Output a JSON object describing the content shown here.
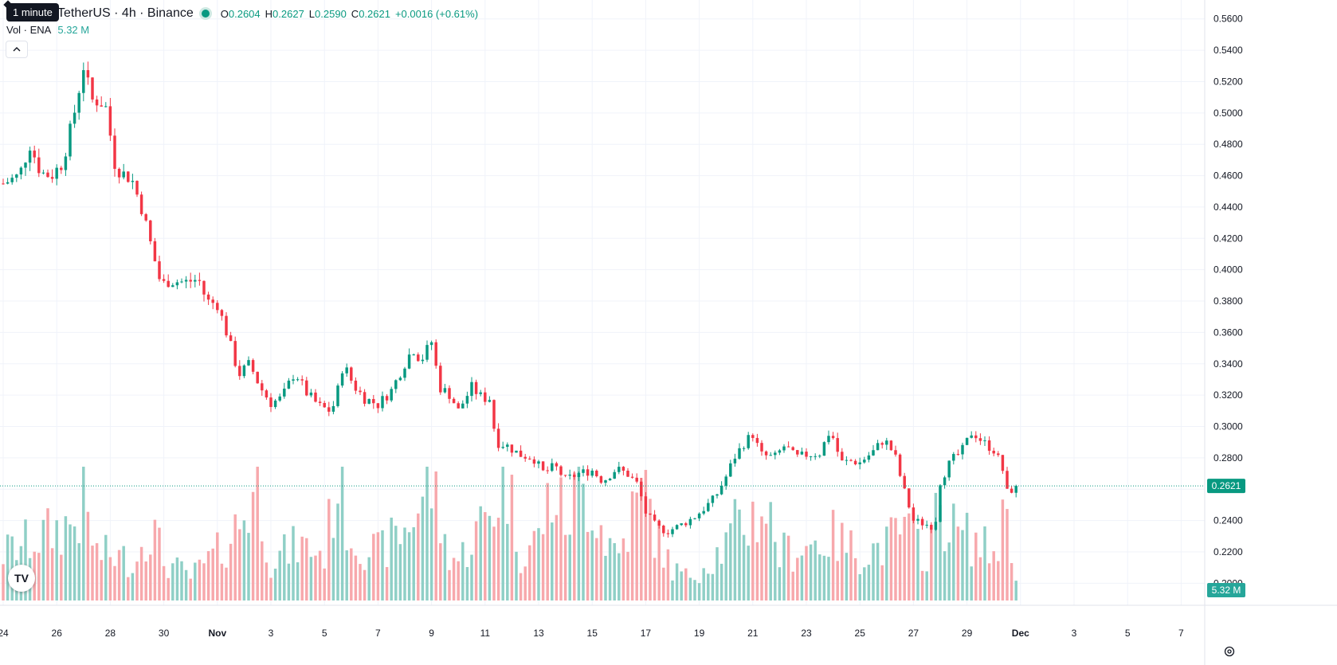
{
  "header": {
    "tooltip": "1 minute",
    "symbol": "TetherUS · 4h · Binance",
    "ohlc": {
      "o_label": "O",
      "o_value": "0.2604",
      "h_label": "H",
      "h_value": "0.2627",
      "l_label": "L",
      "l_value": "0.2590",
      "c_label": "C",
      "c_value": "0.2621",
      "change": "+0.0016 (+0.61%)"
    },
    "volume_label": "Vol · ENA",
    "volume_value": "5.32 M",
    "collapse_icon": "chevron-up-icon"
  },
  "colors": {
    "up": "#089981",
    "down": "#f23645",
    "up_vol": "#8fcfc6",
    "down_vol": "#f7a8ac",
    "grid": "#f0f3fa"
  },
  "price_badge": "0.2621",
  "volume_badge": "5.32 M",
  "logo": "TV",
  "chart_data": {
    "type": "candlestick",
    "interval": "4h",
    "y_axis": {
      "min": 0.19,
      "max": 0.568,
      "ticks": [
        "0.5600",
        "0.5400",
        "0.5200",
        "0.5000",
        "0.4800",
        "0.4600",
        "0.4400",
        "0.4200",
        "0.4000",
        "0.3800",
        "0.3600",
        "0.3400",
        "0.3200",
        "0.3000",
        "0.2800",
        "0.2600",
        "0.2400",
        "0.2200",
        "0.2000"
      ]
    },
    "x_axis": {
      "ticks": [
        "24",
        "26",
        "28",
        "30",
        "Nov",
        "3",
        "5",
        "7",
        "9",
        "11",
        "13",
        "15",
        "17",
        "19",
        "21",
        "23",
        "25",
        "27",
        "29",
        "Dec",
        "3",
        "5",
        "7"
      ],
      "tick_days": [
        0,
        2,
        4,
        6,
        8,
        10,
        12,
        14,
        16,
        18,
        20,
        22,
        24,
        26,
        28,
        30,
        32,
        34,
        36,
        38,
        40,
        42,
        44
      ]
    },
    "last_price": 0.2621,
    "anchors": [
      [
        0,
        0.455
      ],
      [
        0.6,
        0.46
      ],
      [
        1.0,
        0.48
      ],
      [
        1.4,
        0.462
      ],
      [
        1.8,
        0.46
      ],
      [
        2.2,
        0.468
      ],
      [
        2.6,
        0.495
      ],
      [
        3.0,
        0.53
      ],
      [
        3.3,
        0.508
      ],
      [
        3.6,
        0.508
      ],
      [
        3.9,
        0.502
      ],
      [
        4.1,
        0.47
      ],
      [
        4.4,
        0.462
      ],
      [
        4.8,
        0.458
      ],
      [
        5.2,
        0.438
      ],
      [
        5.6,
        0.41
      ],
      [
        5.9,
        0.39
      ],
      [
        6.2,
        0.393
      ],
      [
        6.8,
        0.392
      ],
      [
        7.3,
        0.394
      ],
      [
        7.6,
        0.38
      ],
      [
        8.0,
        0.378
      ],
      [
        8.4,
        0.357
      ],
      [
        8.8,
        0.333
      ],
      [
        9.2,
        0.34
      ],
      [
        9.6,
        0.325
      ],
      [
        10.0,
        0.315
      ],
      [
        10.4,
        0.318
      ],
      [
        10.9,
        0.335
      ],
      [
        11.3,
        0.322
      ],
      [
        11.8,
        0.313
      ],
      [
        12.2,
        0.31
      ],
      [
        12.4,
        0.315
      ],
      [
        12.7,
        0.34
      ],
      [
        13.1,
        0.326
      ],
      [
        13.5,
        0.318
      ],
      [
        14.0,
        0.314
      ],
      [
        14.5,
        0.323
      ],
      [
        14.9,
        0.337
      ],
      [
        15.3,
        0.35
      ],
      [
        15.6,
        0.342
      ],
      [
        16.0,
        0.354
      ],
      [
        16.3,
        0.325
      ],
      [
        16.7,
        0.32
      ],
      [
        17.0,
        0.31
      ],
      [
        17.5,
        0.325
      ],
      [
        17.9,
        0.318
      ],
      [
        18.2,
        0.318
      ],
      [
        18.4,
        0.29
      ],
      [
        18.8,
        0.288
      ],
      [
        19.3,
        0.282
      ],
      [
        19.8,
        0.28
      ],
      [
        20.2,
        0.27
      ],
      [
        20.6,
        0.275
      ],
      [
        21.0,
        0.266
      ],
      [
        21.5,
        0.27
      ],
      [
        22.0,
        0.272
      ],
      [
        22.4,
        0.265
      ],
      [
        22.9,
        0.273
      ],
      [
        23.3,
        0.27
      ],
      [
        23.7,
        0.263
      ],
      [
        24.0,
        0.245
      ],
      [
        24.4,
        0.236
      ],
      [
        24.8,
        0.233
      ],
      [
        25.3,
        0.237
      ],
      [
        25.8,
        0.242
      ],
      [
        26.2,
        0.248
      ],
      [
        26.6,
        0.255
      ],
      [
        27.0,
        0.268
      ],
      [
        27.3,
        0.28
      ],
      [
        27.7,
        0.29
      ],
      [
        28.0,
        0.295
      ],
      [
        28.3,
        0.282
      ],
      [
        28.8,
        0.28
      ],
      [
        29.2,
        0.288
      ],
      [
        29.6,
        0.28
      ],
      [
        30.0,
        0.282
      ],
      [
        30.5,
        0.283
      ],
      [
        30.9,
        0.298
      ],
      [
        31.3,
        0.277
      ],
      [
        31.7,
        0.278
      ],
      [
        32.0,
        0.277
      ],
      [
        32.5,
        0.284
      ],
      [
        32.9,
        0.292
      ],
      [
        33.3,
        0.282
      ],
      [
        33.6,
        0.262
      ],
      [
        34.0,
        0.24
      ],
      [
        34.4,
        0.238
      ],
      [
        34.8,
        0.236
      ],
      [
        35.0,
        0.265
      ],
      [
        35.4,
        0.278
      ],
      [
        35.8,
        0.284
      ],
      [
        36.2,
        0.297
      ],
      [
        36.6,
        0.29
      ],
      [
        37.0,
        0.285
      ],
      [
        37.3,
        0.275
      ],
      [
        37.5,
        0.258
      ],
      [
        37.9,
        0.262
      ]
    ],
    "volume_profile_m": [
      [
        0,
        6
      ],
      [
        2.7,
        10
      ],
      [
        3.0,
        12
      ],
      [
        3.5,
        6
      ],
      [
        5.0,
        5
      ],
      [
        5.2,
        9
      ],
      [
        5.6,
        9
      ],
      [
        6.0,
        5
      ],
      [
        7.0,
        3
      ],
      [
        8.0,
        6
      ],
      [
        8.5,
        8
      ],
      [
        9.0,
        11
      ],
      [
        9.5,
        15
      ],
      [
        10.0,
        5
      ],
      [
        11.0,
        7
      ],
      [
        12.0,
        6
      ],
      [
        12.5,
        16
      ],
      [
        13.0,
        8
      ],
      [
        14.0,
        6
      ],
      [
        15.0,
        9
      ],
      [
        16.0,
        15
      ],
      [
        16.5,
        7
      ],
      [
        17.0,
        5
      ],
      [
        18.3,
        12
      ],
      [
        18.8,
        16
      ],
      [
        19.3,
        6
      ],
      [
        20.0,
        8
      ],
      [
        20.5,
        14
      ],
      [
        21.0,
        10
      ],
      [
        21.5,
        14
      ],
      [
        22.0,
        13
      ],
      [
        22.5,
        8
      ],
      [
        23.0,
        6
      ],
      [
        23.5,
        11
      ],
      [
        24.0,
        14
      ],
      [
        24.4,
        8
      ],
      [
        25.0,
        4
      ],
      [
        25.5,
        3
      ],
      [
        26.0,
        4
      ],
      [
        27.0,
        7
      ],
      [
        27.3,
        9
      ],
      [
        27.8,
        10
      ],
      [
        28.5,
        12
      ],
      [
        29.0,
        6
      ],
      [
        30.0,
        7
      ],
      [
        31.0,
        8
      ],
      [
        32.0,
        6
      ],
      [
        33.0,
        7
      ],
      [
        33.5,
        9
      ],
      [
        34.0,
        8
      ],
      [
        34.5,
        6
      ],
      [
        35.0,
        12
      ],
      [
        35.5,
        9
      ],
      [
        36.0,
        8
      ],
      [
        37.0,
        6
      ],
      [
        37.5,
        12
      ],
      [
        37.9,
        2
      ]
    ],
    "volume_max_m": 17
  }
}
